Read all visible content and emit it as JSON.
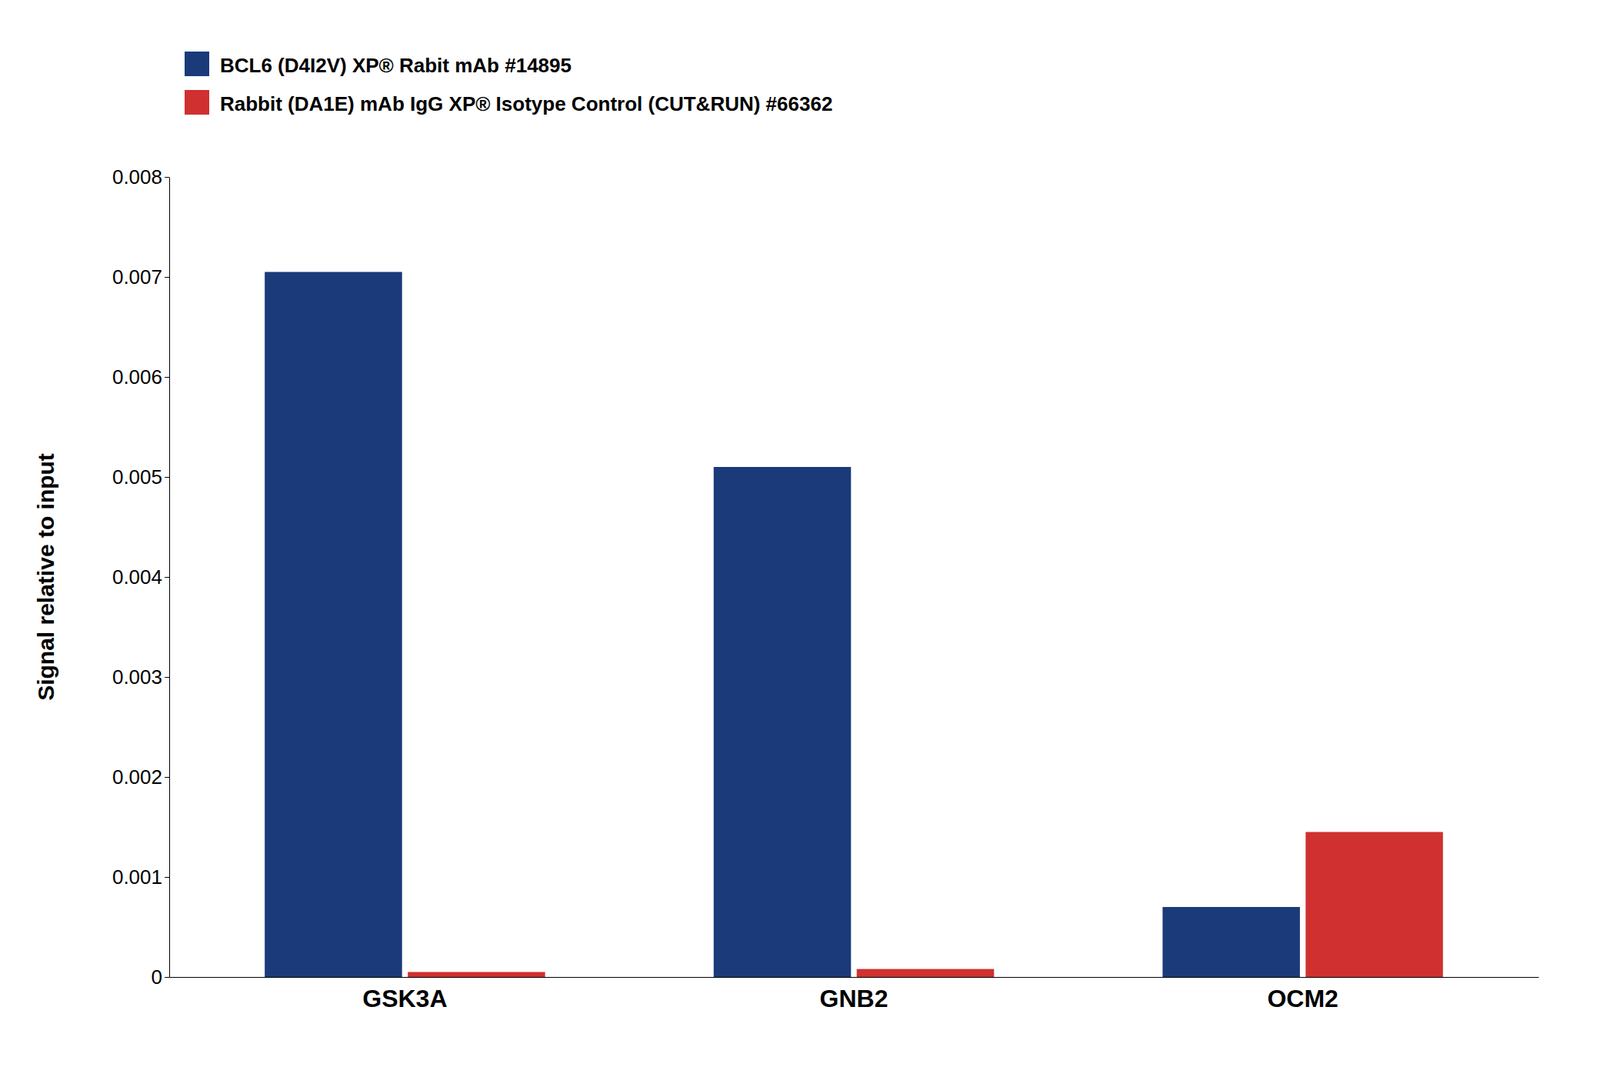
{
  "chart_data": {
    "type": "bar",
    "categories": [
      "GSK3A",
      "GNB2",
      "OCM2"
    ],
    "series": [
      {
        "name": "BCL6 (D4I2V) XP® Rabit mAb #14895",
        "color": "#1a3a7a",
        "values": [
          0.00705,
          0.0051,
          0.0007
        ]
      },
      {
        "name": "Rabbit (DA1E) mAb IgG XP® Isotype Control (CUT&RUN) #66362",
        "color": "#d03030",
        "values": [
          5e-05,
          8e-05,
          0.00145
        ]
      }
    ],
    "ylabel": "Signal relative to input",
    "ylim": [
      0,
      0.008
    ],
    "yticks": [
      0,
      0.001,
      0.002,
      0.003,
      0.004,
      0.005,
      0.006,
      0.007,
      0.008
    ],
    "grid": false,
    "legend": "top-left"
  }
}
